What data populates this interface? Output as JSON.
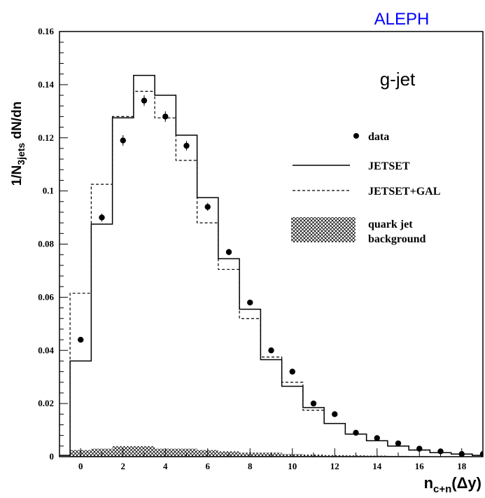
{
  "chart_data": {
    "type": "histogram",
    "experiment": "ALEPH",
    "panel_label": "g-jet",
    "xlabel": {
      "main": "n",
      "sub": "c+n",
      "suffix": "(Δy)"
    },
    "ylabel": {
      "prefix": "1/N",
      "sub": "3jets",
      "suffix": " dN/dn"
    },
    "xlim": [
      -1,
      19
    ],
    "ylim": [
      0,
      0.16
    ],
    "x_ticks": [
      0,
      2,
      4,
      6,
      8,
      10,
      12,
      14,
      16,
      18
    ],
    "x_tick_labels": [
      "0",
      "2",
      "4",
      "6",
      "8",
      "10",
      "12",
      "14",
      "16",
      "18"
    ],
    "y_ticks": [
      0,
      0.02,
      0.04,
      0.06,
      0.08,
      0.1,
      0.12,
      0.14,
      0.16
    ],
    "y_tick_labels": [
      "0",
      "0.02",
      "0.04",
      "0.06",
      "0.08",
      "0.1",
      "0.12",
      "0.14",
      "0.16"
    ],
    "bin_edges": [
      -1,
      -0.5,
      0.5,
      1.5,
      2.5,
      3.5,
      4.5,
      5.5,
      6.5,
      7.5,
      8.5,
      9.5,
      10.5,
      11.5,
      12.5,
      13.5,
      14.5,
      15.5,
      16.5,
      17.5,
      18.5,
      19
    ],
    "legend": {
      "data": "data",
      "jetset": "JETSET",
      "jetset_gal": "JETSET+GAL",
      "background": [
        "quark jet",
        "background"
      ]
    },
    "series": [
      {
        "name": "data",
        "style": "points",
        "x": [
          0,
          1,
          2,
          3,
          4,
          5,
          6,
          7,
          8,
          9,
          10,
          11,
          12,
          13,
          14,
          15,
          16,
          17,
          18,
          19
        ],
        "y": [
          0.044,
          0.09,
          0.119,
          0.134,
          0.128,
          0.117,
          0.094,
          0.077,
          0.058,
          0.04,
          0.032,
          0.02,
          0.016,
          0.009,
          0.007,
          0.005,
          0.003,
          0.002,
          0.001,
          0.001
        ],
        "yerr": [
          0.0008,
          0.0015,
          0.002,
          0.002,
          0.002,
          0.0018,
          0.0015,
          0.0012,
          0.001,
          0.0008,
          0.0006,
          0.0005,
          0.0004,
          0.0003,
          0.0003,
          0.0002,
          0.0002,
          0.0001,
          0.0001,
          0.0001
        ]
      },
      {
        "name": "JETSET",
        "style": "solid",
        "values": [
          0.0005,
          0.036,
          0.0875,
          0.1275,
          0.1435,
          0.136,
          0.121,
          0.0975,
          0.0745,
          0.0555,
          0.0365,
          0.0265,
          0.0185,
          0.0125,
          0.0085,
          0.006,
          0.004,
          0.0025,
          0.0015,
          0.001,
          0.0005
        ]
      },
      {
        "name": "JETSET+GAL",
        "style": "dashed",
        "values": [
          0.0005,
          0.0615,
          0.1025,
          0.128,
          0.1375,
          0.1275,
          0.1115,
          0.088,
          0.0705,
          0.052,
          0.0375,
          0.028,
          0.0175,
          0.0125,
          0.0085,
          0.006,
          0.004,
          0.0025,
          0.0015,
          0.001,
          0.0005
        ]
      },
      {
        "name": "quark jet background",
        "style": "hatched",
        "values": [
          0.0,
          0.0025,
          0.003,
          0.004,
          0.004,
          0.003,
          0.003,
          0.0025,
          0.002,
          0.0015,
          0.0015,
          0.001,
          0.0008,
          0.0006,
          0.0005,
          0.0004,
          0.0003,
          0.0002,
          0.0001,
          0.0001,
          0.0
        ]
      }
    ]
  }
}
